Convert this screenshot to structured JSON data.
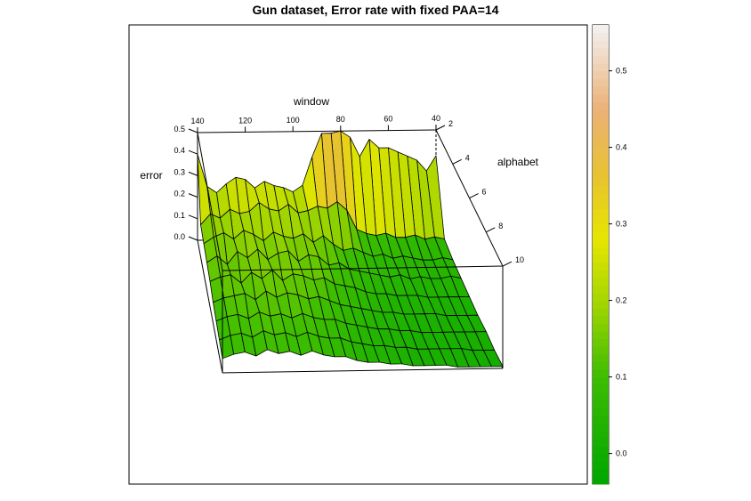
{
  "chart_data": {
    "type": "surface3d",
    "title": "Gun dataset, Error rate with fixed PAA=14",
    "x_axis": {
      "label": "window",
      "ticks": [
        "140",
        "120",
        "100",
        "80",
        "60",
        "40"
      ]
    },
    "y_axis": {
      "label": "alphabet",
      "ticks": [
        "2",
        "4",
        "6",
        "8",
        "10"
      ]
    },
    "z_axis": {
      "label": "error",
      "ticks": [
        "0.5",
        "0.4",
        "0.3",
        "0.2",
        "0.1",
        "0.0"
      ]
    },
    "colorkey": {
      "ticks": [
        "0.5",
        "0.4",
        "0.3",
        "0.2",
        "0.1",
        "0.0"
      ],
      "range": [
        -0.04,
        0.56
      ],
      "tick_values": [
        0.5,
        0.4,
        0.3,
        0.2,
        0.1,
        0.0
      ],
      "colors": [
        {
          "v": -0.04,
          "c": "#00a600"
        },
        {
          "v": 0.1,
          "c": "#3cbd00"
        },
        {
          "v": 0.2,
          "c": "#a6d600"
        },
        {
          "v": 0.28,
          "c": "#e6e600"
        },
        {
          "v": 0.36,
          "c": "#e8c32e"
        },
        {
          "v": 0.45,
          "c": "#ecb176"
        },
        {
          "v": 0.56,
          "c": "#f2f2f2"
        }
      ]
    },
    "window_range": [
      40,
      140
    ],
    "alphabet_range": [
      2,
      10
    ],
    "error_range": [
      0.0,
      0.5
    ],
    "surface_note_window": [
      140,
      136,
      132,
      128,
      124,
      120,
      116,
      112,
      108,
      104,
      100,
      96,
      92,
      88,
      84,
      80,
      76,
      72,
      68,
      64,
      60,
      56,
      52,
      48,
      44,
      40
    ],
    "surface_note_alphabet": [
      2,
      3,
      4,
      5,
      6,
      7,
      8,
      9,
      10
    ],
    "surface_error": [
      [
        0.4,
        0.25,
        0.22,
        0.26,
        0.29,
        0.28,
        0.24,
        0.27,
        0.25,
        0.24,
        0.22,
        0.25,
        0.38,
        0.49,
        0.49,
        0.5,
        0.47,
        0.38,
        0.46,
        0.42,
        0.42,
        0.4,
        0.38,
        0.36,
        0.31,
        0.38
      ],
      [
        0.15,
        0.2,
        0.18,
        0.22,
        0.2,
        0.21,
        0.25,
        0.22,
        0.21,
        0.24,
        0.2,
        0.21,
        0.23,
        0.22,
        0.25,
        0.21,
        0.12,
        0.1,
        0.09,
        0.1,
        0.08,
        0.08,
        0.09,
        0.07,
        0.08,
        0.07
      ],
      [
        0.14,
        0.17,
        0.19,
        0.16,
        0.2,
        0.18,
        0.15,
        0.19,
        0.17,
        0.16,
        0.18,
        0.14,
        0.17,
        0.13,
        0.1,
        0.11,
        0.09,
        0.07,
        0.08,
        0.06,
        0.07,
        0.06,
        0.05,
        0.05,
        0.06,
        0.05
      ],
      [
        0.13,
        0.16,
        0.12,
        0.18,
        0.15,
        0.19,
        0.14,
        0.17,
        0.18,
        0.13,
        0.16,
        0.15,
        0.11,
        0.12,
        0.09,
        0.08,
        0.07,
        0.06,
        0.05,
        0.06,
        0.04,
        0.05,
        0.04,
        0.04,
        0.05,
        0.04
      ],
      [
        0.12,
        0.14,
        0.15,
        0.11,
        0.16,
        0.13,
        0.17,
        0.12,
        0.15,
        0.14,
        0.12,
        0.13,
        0.1,
        0.09,
        0.08,
        0.06,
        0.05,
        0.05,
        0.04,
        0.04,
        0.04,
        0.03,
        0.03,
        0.03,
        0.03,
        0.03
      ],
      [
        0.1,
        0.12,
        0.13,
        0.14,
        0.11,
        0.15,
        0.12,
        0.14,
        0.13,
        0.11,
        0.12,
        0.1,
        0.08,
        0.07,
        0.06,
        0.05,
        0.04,
        0.04,
        0.03,
        0.03,
        0.03,
        0.03,
        0.02,
        0.02,
        0.02,
        0.02
      ],
      [
        0.09,
        0.11,
        0.12,
        0.1,
        0.13,
        0.11,
        0.12,
        0.1,
        0.12,
        0.1,
        0.09,
        0.09,
        0.07,
        0.06,
        0.05,
        0.04,
        0.04,
        0.03,
        0.03,
        0.02,
        0.02,
        0.02,
        0.02,
        0.02,
        0.02,
        0.02
      ],
      [
        0.08,
        0.1,
        0.11,
        0.09,
        0.12,
        0.1,
        0.11,
        0.09,
        0.11,
        0.09,
        0.08,
        0.08,
        0.06,
        0.05,
        0.04,
        0.04,
        0.03,
        0.03,
        0.02,
        0.02,
        0.02,
        0.02,
        0.02,
        0.01,
        0.01,
        0.01
      ],
      [
        0.07,
        0.09,
        0.1,
        0.08,
        0.11,
        0.09,
        0.1,
        0.08,
        0.1,
        0.08,
        0.07,
        0.07,
        0.05,
        0.04,
        0.04,
        0.03,
        0.03,
        0.02,
        0.02,
        0.02,
        0.02,
        0.01,
        0.01,
        0.01,
        0.01,
        0.01
      ]
    ]
  }
}
